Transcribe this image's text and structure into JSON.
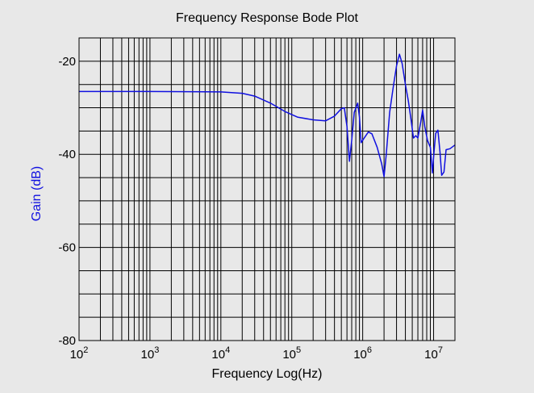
{
  "background_color": "#e8e8e8",
  "plot_background_color": "#e8e8e8",
  "grid_color": "#000000",
  "line_color": "#1010e0",
  "ylabel_color": "#1010e0",
  "chart_data": {
    "type": "line",
    "title": "Frequency Response Bode Plot",
    "xlabel": "Frequency Log(Hz)",
    "ylabel": "Gain (dB)",
    "x_scale": "log",
    "xlim": [
      100,
      20000000
    ],
    "ylim": [
      -80,
      -15
    ],
    "grid": true,
    "x_tick_labels": [
      {
        "x": 100,
        "base": "10",
        "exp": "2"
      },
      {
        "x": 1000,
        "base": "10",
        "exp": "3"
      },
      {
        "x": 10000,
        "base": "10",
        "exp": "4"
      },
      {
        "x": 100000,
        "base": "10",
        "exp": "5"
      },
      {
        "x": 1000000,
        "base": "10",
        "exp": "6"
      },
      {
        "x": 10000000,
        "base": "10",
        "exp": "7"
      }
    ],
    "y_ticks": [
      -80,
      -60,
      -40,
      -20
    ],
    "y_tick_labels": [
      "-80",
      "-60",
      "-40",
      "-20"
    ],
    "y_grid": [
      -80,
      -75,
      -70,
      -65,
      -60,
      -55,
      -50,
      -45,
      -40,
      -35,
      -30,
      -25,
      -20,
      -15
    ],
    "series": [
      {
        "points": [
          [
            100,
            -26.5
          ],
          [
            1000,
            -26.5
          ],
          [
            10000,
            -26.6
          ],
          [
            20000,
            -26.9
          ],
          [
            30000,
            -27.5
          ],
          [
            50000,
            -29.0
          ],
          [
            80000,
            -30.8
          ],
          [
            120000,
            -32.0
          ],
          [
            200000,
            -32.6
          ],
          [
            300000,
            -32.8
          ],
          [
            400000,
            -31.8
          ],
          [
            500000,
            -30.2
          ],
          [
            550000,
            -30.0
          ],
          [
            600000,
            -34.0
          ],
          [
            650000,
            -41.5
          ],
          [
            700000,
            -37.0
          ],
          [
            760000,
            -31.0
          ],
          [
            850000,
            -29.0
          ],
          [
            900000,
            -32.0
          ],
          [
            950000,
            -37.5
          ],
          [
            1050000,
            -36.5
          ],
          [
            1200000,
            -35.2
          ],
          [
            1350000,
            -35.6
          ],
          [
            1600000,
            -38.5
          ],
          [
            1850000,
            -42.0
          ],
          [
            2000000,
            -44.8
          ],
          [
            2150000,
            -40.0
          ],
          [
            2400000,
            -31.0
          ],
          [
            2700000,
            -25.5
          ],
          [
            3000000,
            -21.0
          ],
          [
            3300000,
            -18.5
          ],
          [
            3600000,
            -20.5
          ],
          [
            4000000,
            -25.0
          ],
          [
            4400000,
            -28.5
          ],
          [
            4800000,
            -32.5
          ],
          [
            5200000,
            -36.5
          ],
          [
            5600000,
            -36.0
          ],
          [
            6000000,
            -36.5
          ],
          [
            6600000,
            -33.0
          ],
          [
            7000000,
            -30.5
          ],
          [
            7500000,
            -34.0
          ],
          [
            8200000,
            -37.0
          ],
          [
            9000000,
            -38.5
          ],
          [
            9600000,
            -44.0
          ],
          [
            10200000,
            -39.0
          ],
          [
            10700000,
            -35.5
          ],
          [
            11500000,
            -34.8
          ],
          [
            12300000,
            -39.5
          ],
          [
            13000000,
            -44.5
          ],
          [
            14000000,
            -43.8
          ],
          [
            15000000,
            -39.0
          ],
          [
            17000000,
            -38.8
          ],
          [
            20000000,
            -38.0
          ]
        ]
      }
    ]
  }
}
